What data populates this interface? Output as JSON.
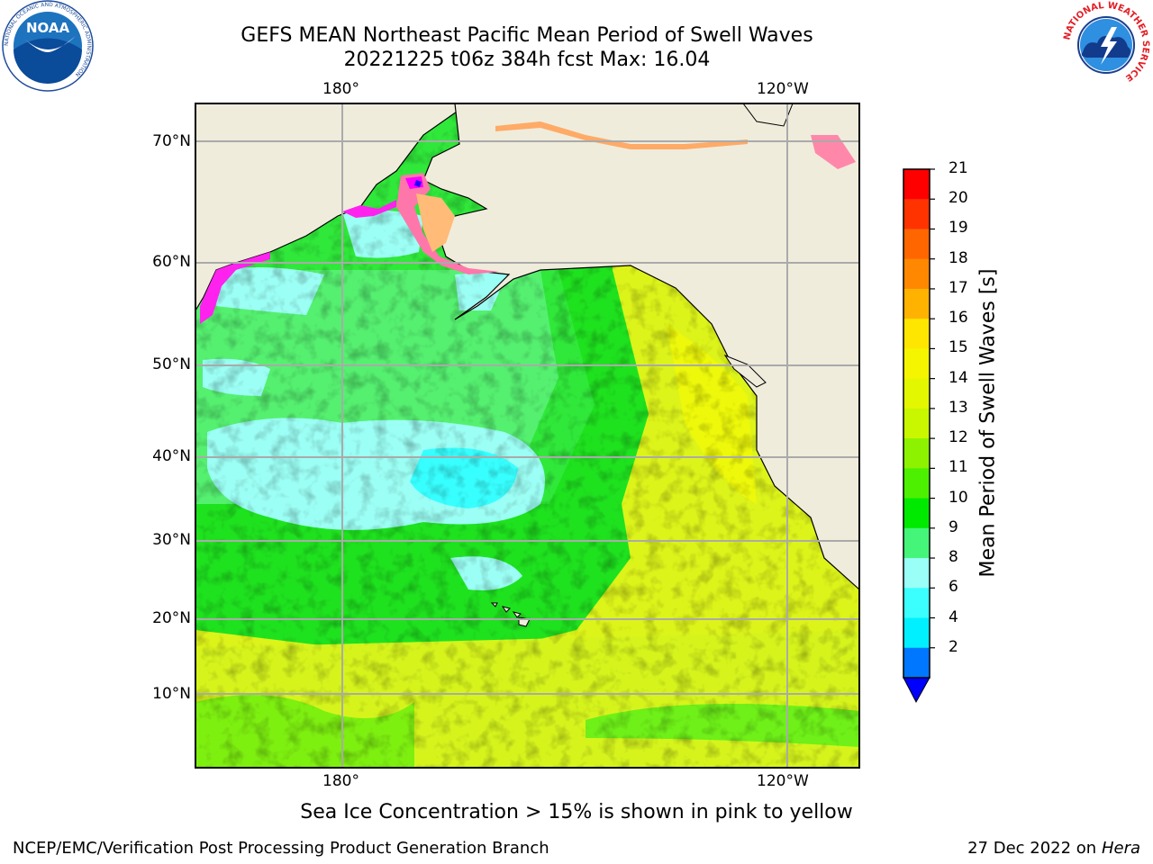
{
  "header": {
    "title_line1": "GEFS MEAN Northeast Pacific Mean Period of Swell Waves",
    "title_line2": "20221225 t06z 384h fcst   Max: 16.04"
  },
  "logos": {
    "left": {
      "name": "noaa-logo",
      "text": "NOAA",
      "ring_text": "NATIONAL OCEANIC AND ATMOSPHERIC ADMINISTRATION"
    },
    "right": {
      "name": "nws-logo",
      "ring_text": "NATIONAL WEATHER SERVICE"
    }
  },
  "map": {
    "top_lon_labels": [
      "180°",
      "120°W"
    ],
    "bottom_lon_labels": [
      "180°",
      "120°W"
    ],
    "lat_labels": [
      "70°N",
      "60°N",
      "50°N",
      "40°N",
      "30°N",
      "20°N",
      "10°N"
    ],
    "land_color": "#efecdc",
    "gridline_color": "#aaaaaa",
    "sea_ice_colors": [
      "#ff00ff",
      "#ff77aa",
      "#ffaa66",
      "#ffdd00"
    ]
  },
  "colorbar": {
    "title": "Mean Period of Swell Waves [s]",
    "ticks": [
      "21",
      "20",
      "19",
      "18",
      "17",
      "16",
      "15",
      "14",
      "13",
      "12",
      "11",
      "10",
      "9",
      "8",
      "6",
      "4",
      "2"
    ],
    "colors_top_to_bottom": [
      "#ff0000",
      "#ff3300",
      "#ff6600",
      "#ff8800",
      "#ffb300",
      "#ffe600",
      "#f5f500",
      "#e3f700",
      "#c8f700",
      "#8cf200",
      "#4cf000",
      "#00ea00",
      "#44f57a",
      "#99fff7",
      "#3bffff",
      "#00f0ff",
      "#0077ff"
    ],
    "extend_color": "#0000ff"
  },
  "footer": {
    "note": "Sea Ice Concentration > 15% is shown in pink to yellow",
    "credit": "NCEP/EMC/Verification Post Processing Product Generation Branch",
    "date": "27 Dec 2022 on",
    "host": "Hera"
  }
}
